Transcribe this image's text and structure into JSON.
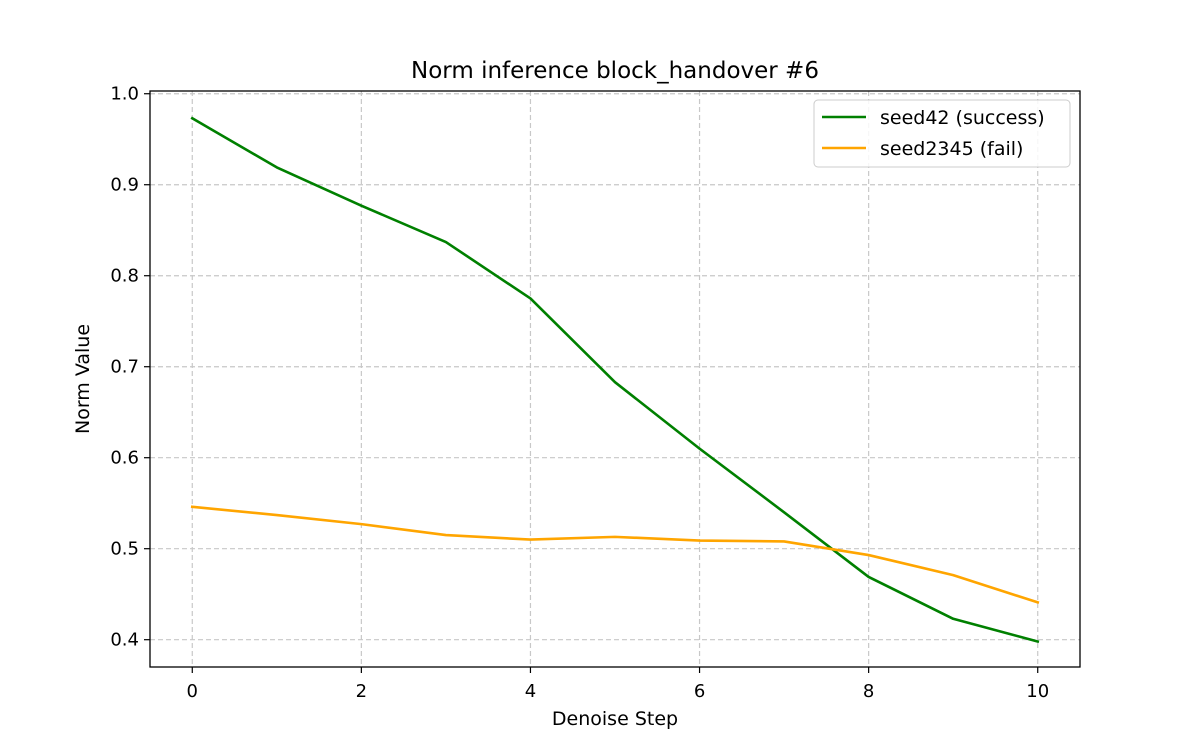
{
  "chart_data": {
    "type": "line",
    "title": "Norm inference block_handover #6",
    "xlabel": "Denoise Step",
    "ylabel": "Norm Value",
    "xlim": [
      -0.5,
      10.5
    ],
    "ylim": [
      0.37,
      1.003
    ],
    "xticks": [
      0,
      2,
      4,
      6,
      8,
      10
    ],
    "yticks": [
      0.4,
      0.5,
      0.6,
      0.7,
      0.8,
      0.9,
      1.0
    ],
    "grid": true,
    "legend_position": "top-right",
    "x": [
      0,
      1,
      2,
      3,
      4,
      5,
      6,
      7,
      8,
      9,
      10
    ],
    "series": [
      {
        "name": "seed42 (success)",
        "color": "#008000",
        "values": [
          0.973,
          0.919,
          0.877,
          0.837,
          0.775,
          0.683,
          0.61,
          0.54,
          0.469,
          0.423,
          0.398
        ]
      },
      {
        "name": "seed2345 (fail)",
        "color": "#FFA500",
        "values": [
          0.546,
          0.537,
          0.527,
          0.515,
          0.51,
          0.513,
          0.509,
          0.508,
          0.493,
          0.471,
          0.441
        ]
      }
    ]
  }
}
